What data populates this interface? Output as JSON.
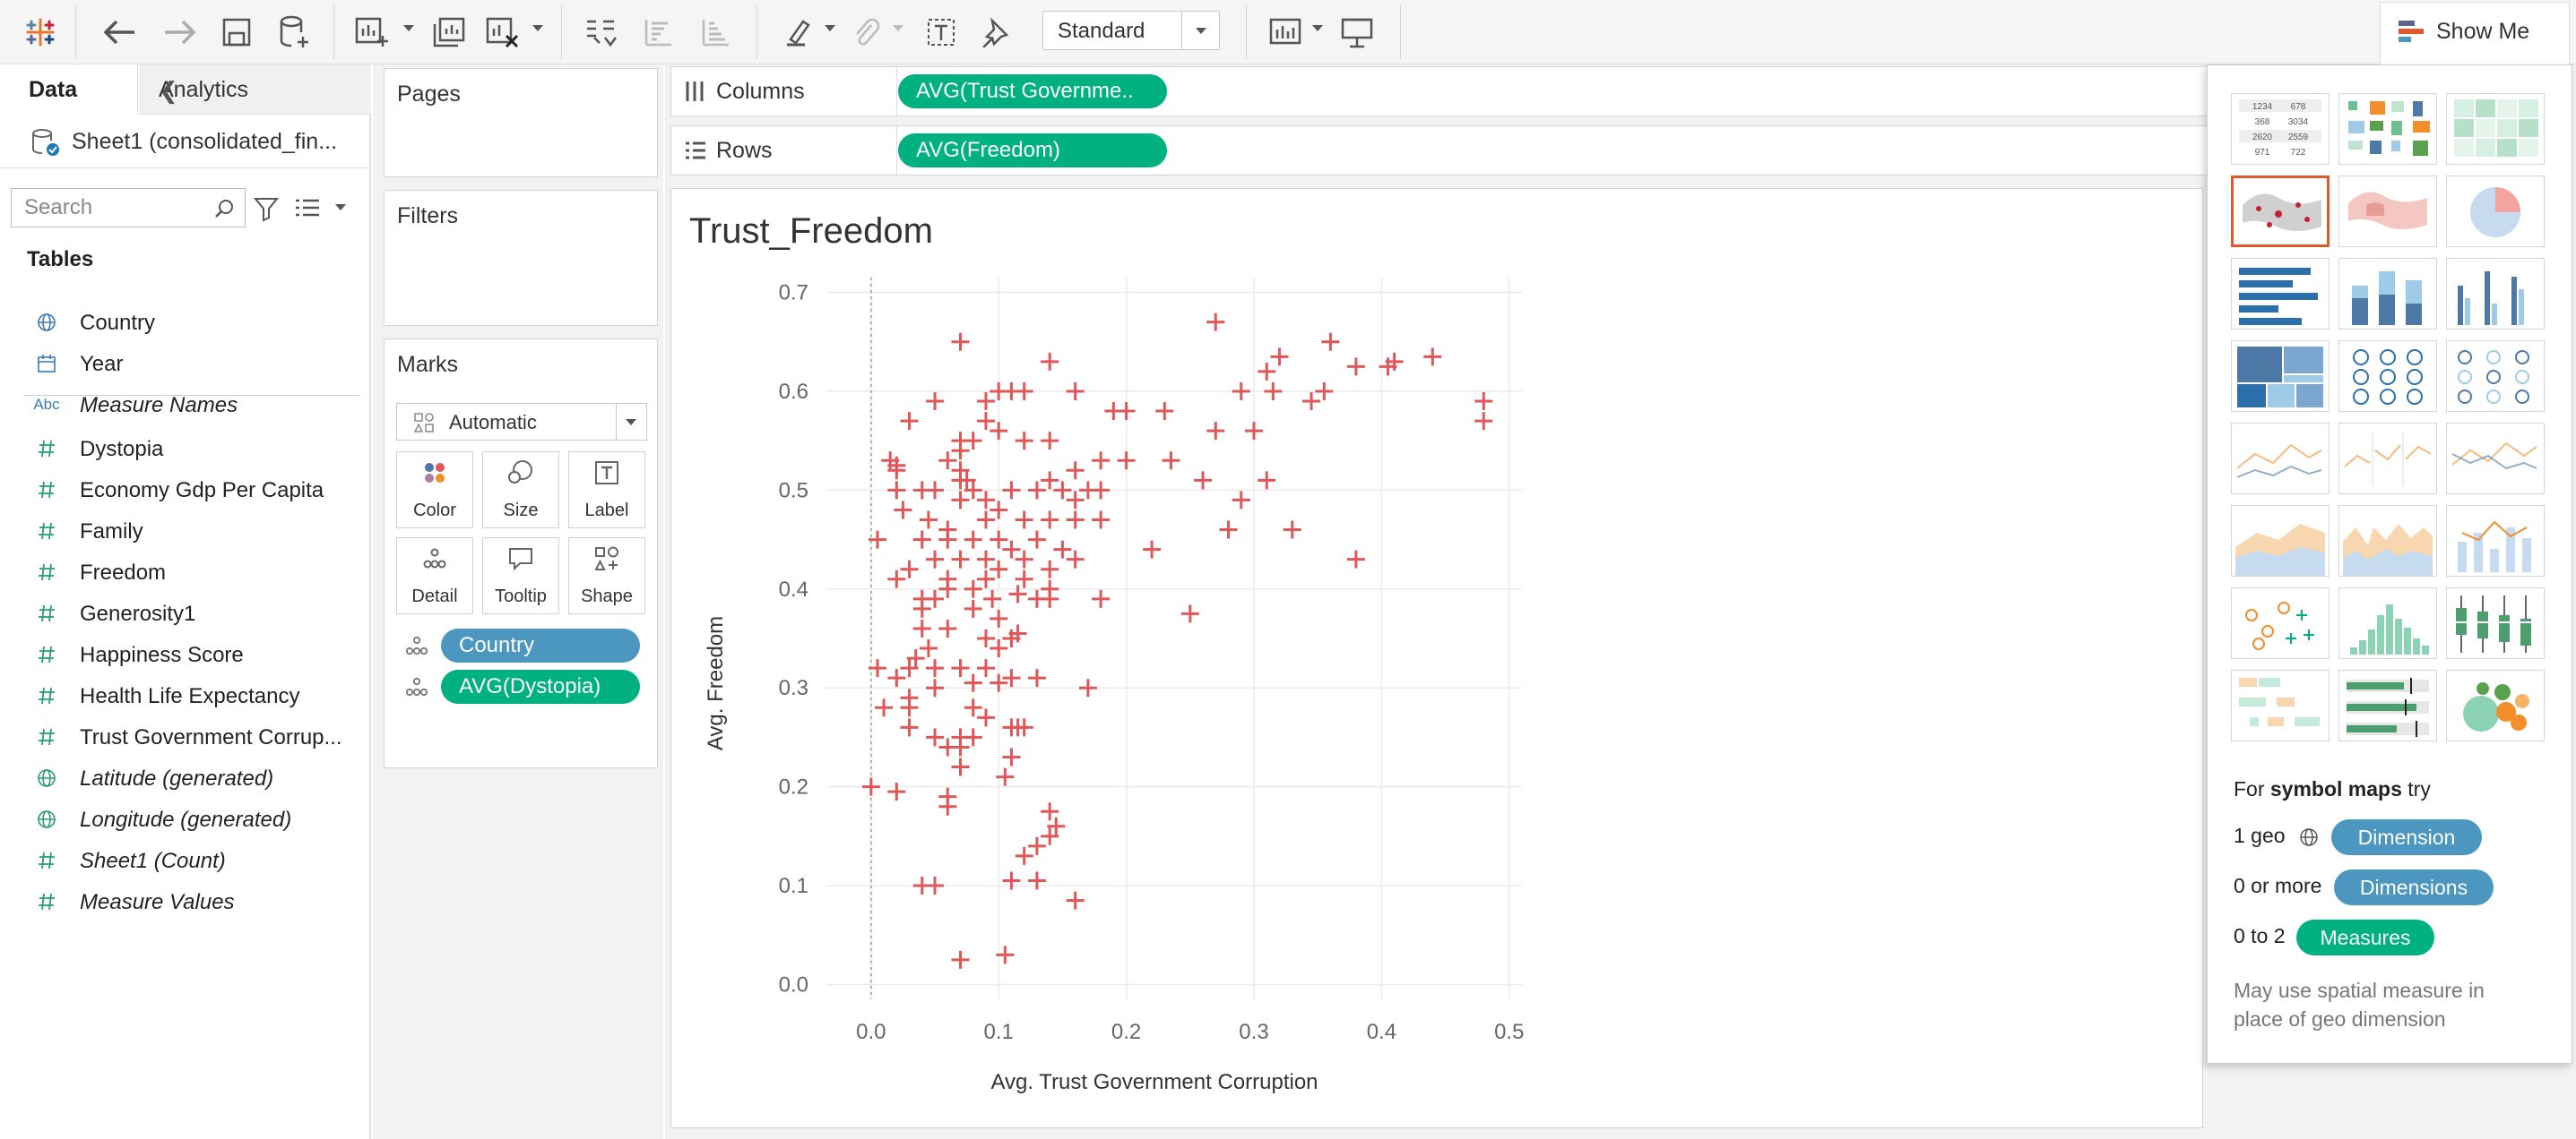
{
  "toolbar": {
    "view_mode": "Standard",
    "show_me_label": "Show Me",
    "icons": [
      "tableau-logo-icon",
      "undo-icon",
      "redo-icon",
      "save-icon",
      "new-datasource-icon",
      "new-worksheet-icon",
      "duplicate-sheet-icon",
      "clear-sheet-icon",
      "swap-rows-columns-icon",
      "sort-ascending-icon",
      "sort-descending-icon",
      "highlight-icon",
      "group-members-icon",
      "show-mark-labels-icon",
      "pin-axes-icon",
      "show-cards-icon",
      "presentation-mode-icon"
    ]
  },
  "data_pane": {
    "tab_data": "Data",
    "tab_analytics": "Analytics",
    "datasource": "Sheet1 (consolidated_fin...",
    "search_placeholder": "Search",
    "tables_heading": "Tables",
    "fields": [
      {
        "name": "Country",
        "icon": "globe-icon",
        "italic": false
      },
      {
        "name": "Year",
        "icon": "calendar-icon",
        "italic": false
      },
      {
        "name": "Measure Names",
        "icon": "abc-icon",
        "italic": true
      },
      {
        "name": "Dystopia",
        "icon": "hash-icon",
        "italic": false
      },
      {
        "name": "Economy Gdp Per Capita",
        "icon": "hash-icon",
        "italic": false
      },
      {
        "name": "Family",
        "icon": "hash-icon",
        "italic": false
      },
      {
        "name": "Freedom",
        "icon": "hash-icon",
        "italic": false
      },
      {
        "name": "Generosity1",
        "icon": "hash-icon",
        "italic": false
      },
      {
        "name": "Happiness Score",
        "icon": "hash-icon",
        "italic": false
      },
      {
        "name": "Health Life Expectancy",
        "icon": "hash-icon",
        "italic": false
      },
      {
        "name": "Trust Government Corrup...",
        "icon": "hash-icon",
        "italic": false
      },
      {
        "name": "Latitude (generated)",
        "icon": "globe-icon",
        "italic": true
      },
      {
        "name": "Longitude (generated)",
        "icon": "globe-icon",
        "italic": true
      },
      {
        "name": "Sheet1 (Count)",
        "icon": "hash-icon",
        "italic": true
      },
      {
        "name": "Measure Values",
        "icon": "hash-icon",
        "italic": true
      }
    ]
  },
  "cards": {
    "pages": "Pages",
    "filters": "Filters",
    "marks": "Marks",
    "mark_type": "Automatic",
    "mark_buttons": [
      "Color",
      "Size",
      "Label",
      "Detail",
      "Tooltip",
      "Shape"
    ],
    "mark_pills": [
      "Country",
      "AVG(Dystopia)"
    ]
  },
  "shelves": {
    "columns_label": "Columns",
    "columns_pill": "AVG(Trust Governme..",
    "rows_label": "Rows",
    "rows_pill": "AVG(Freedom)"
  },
  "sheet_title": "Trust_Freedom",
  "chart_data": {
    "type": "scatter",
    "title": "Trust_Freedom",
    "xlabel": "Avg. Trust Government Corruption",
    "ylabel": "Avg. Freedom",
    "xlim": [
      -0.035,
      0.51
    ],
    "ylim": [
      -0.015,
      0.715
    ],
    "xticks": [
      "0.0",
      "0.1",
      "0.2",
      "0.3",
      "0.4",
      "0.5"
    ],
    "yticks": [
      "0.0",
      "0.1",
      "0.2",
      "0.3",
      "0.4",
      "0.5",
      "0.6",
      "0.7"
    ],
    "grid": true,
    "marker": "plus",
    "color": "#e15759",
    "points": [
      [
        0.27,
        0.67
      ],
      [
        0.36,
        0.65
      ],
      [
        0.44,
        0.635
      ],
      [
        0.32,
        0.635
      ],
      [
        0.41,
        0.63
      ],
      [
        0.405,
        0.625
      ],
      [
        0.38,
        0.625
      ],
      [
        0.31,
        0.62
      ],
      [
        0.315,
        0.6
      ],
      [
        0.29,
        0.6
      ],
      [
        0.355,
        0.6
      ],
      [
        0.345,
        0.59
      ],
      [
        0.23,
        0.58
      ],
      [
        0.2,
        0.58
      ],
      [
        0.19,
        0.58
      ],
      [
        0.48,
        0.59
      ],
      [
        0.48,
        0.57
      ],
      [
        0.3,
        0.56
      ],
      [
        0.27,
        0.56
      ],
      [
        0.07,
        0.65
      ],
      [
        0.14,
        0.63
      ],
      [
        0.12,
        0.6
      ],
      [
        0.16,
        0.6
      ],
      [
        0.11,
        0.6
      ],
      [
        0.1,
        0.6
      ],
      [
        0.09,
        0.59
      ],
      [
        0.05,
        0.59
      ],
      [
        0.03,
        0.57
      ],
      [
        0.09,
        0.57
      ],
      [
        0.08,
        0.55
      ],
      [
        0.07,
        0.55
      ],
      [
        0.07,
        0.54
      ],
      [
        0.12,
        0.55
      ],
      [
        0.14,
        0.55
      ],
      [
        0.1,
        0.56
      ],
      [
        0.06,
        0.53
      ],
      [
        0.07,
        0.52
      ],
      [
        0.07,
        0.51
      ],
      [
        0.015,
        0.53
      ],
      [
        0.02,
        0.525
      ],
      [
        0.02,
        0.52
      ],
      [
        0.075,
        0.51
      ],
      [
        0.18,
        0.53
      ],
      [
        0.2,
        0.53
      ],
      [
        0.235,
        0.53
      ],
      [
        0.16,
        0.52
      ],
      [
        0.14,
        0.51
      ],
      [
        0.17,
        0.5
      ],
      [
        0.18,
        0.5
      ],
      [
        0.16,
        0.49
      ],
      [
        0.15,
        0.5
      ],
      [
        0.13,
        0.5
      ],
      [
        0.11,
        0.5
      ],
      [
        0.08,
        0.5
      ],
      [
        0.09,
        0.49
      ],
      [
        0.07,
        0.49
      ],
      [
        0.05,
        0.5
      ],
      [
        0.04,
        0.5
      ],
      [
        0.02,
        0.5
      ],
      [
        0.025,
        0.48
      ],
      [
        0.045,
        0.47
      ],
      [
        0.06,
        0.46
      ],
      [
        0.09,
        0.47
      ],
      [
        0.1,
        0.48
      ],
      [
        0.12,
        0.47
      ],
      [
        0.14,
        0.47
      ],
      [
        0.16,
        0.47
      ],
      [
        0.18,
        0.47
      ],
      [
        0.26,
        0.51
      ],
      [
        0.31,
        0.51
      ],
      [
        0.29,
        0.49
      ],
      [
        0.28,
        0.46
      ],
      [
        0.33,
        0.46
      ],
      [
        0.005,
        0.45
      ],
      [
        0.04,
        0.45
      ],
      [
        0.06,
        0.45
      ],
      [
        0.08,
        0.45
      ],
      [
        0.1,
        0.45
      ],
      [
        0.11,
        0.44
      ],
      [
        0.13,
        0.45
      ],
      [
        0.15,
        0.44
      ],
      [
        0.12,
        0.43
      ],
      [
        0.09,
        0.43
      ],
      [
        0.07,
        0.43
      ],
      [
        0.05,
        0.43
      ],
      [
        0.03,
        0.42
      ],
      [
        0.1,
        0.42
      ],
      [
        0.14,
        0.42
      ],
      [
        0.16,
        0.43
      ],
      [
        0.22,
        0.44
      ],
      [
        0.38,
        0.43
      ],
      [
        0.02,
        0.41
      ],
      [
        0.06,
        0.41
      ],
      [
        0.09,
        0.41
      ],
      [
        0.12,
        0.41
      ],
      [
        0.14,
        0.4
      ],
      [
        0.115,
        0.395
      ],
      [
        0.08,
        0.4
      ],
      [
        0.06,
        0.4
      ],
      [
        0.04,
        0.39
      ],
      [
        0.05,
        0.39
      ],
      [
        0.04,
        0.38
      ],
      [
        0.13,
        0.39
      ],
      [
        0.18,
        0.39
      ],
      [
        0.095,
        0.39
      ],
      [
        0.25,
        0.375
      ],
      [
        0.14,
        0.39
      ],
      [
        0.08,
        0.38
      ],
      [
        0.1,
        0.37
      ],
      [
        0.04,
        0.36
      ],
      [
        0.06,
        0.36
      ],
      [
        0.09,
        0.35
      ],
      [
        0.11,
        0.35
      ],
      [
        0.115,
        0.355
      ],
      [
        0.1,
        0.34
      ],
      [
        0.045,
        0.34
      ],
      [
        0.035,
        0.33
      ],
      [
        0.03,
        0.32
      ],
      [
        0.02,
        0.31
      ],
      [
        0.005,
        0.32
      ],
      [
        0.05,
        0.32
      ],
      [
        0.07,
        0.32
      ],
      [
        0.09,
        0.32
      ],
      [
        0.11,
        0.31
      ],
      [
        0.13,
        0.31
      ],
      [
        0.1,
        0.305
      ],
      [
        0.08,
        0.305
      ],
      [
        0.05,
        0.3
      ],
      [
        0.03,
        0.29
      ],
      [
        0.17,
        0.3
      ],
      [
        0.01,
        0.28
      ],
      [
        0.03,
        0.28
      ],
      [
        0.08,
        0.28
      ],
      [
        0.09,
        0.27
      ],
      [
        0.11,
        0.26
      ],
      [
        0.12,
        0.26
      ],
      [
        0.115,
        0.26
      ],
      [
        0.03,
        0.26
      ],
      [
        0.05,
        0.25
      ],
      [
        0.07,
        0.25
      ],
      [
        0.08,
        0.25
      ],
      [
        0.06,
        0.24
      ],
      [
        0.07,
        0.24
      ],
      [
        0.11,
        0.23
      ],
      [
        0.07,
        0.22
      ],
      [
        0.105,
        0.21
      ],
      [
        0.0,
        0.2
      ],
      [
        0.02,
        0.195
      ],
      [
        0.06,
        0.19
      ],
      [
        0.06,
        0.18
      ],
      [
        0.14,
        0.175
      ],
      [
        0.145,
        0.16
      ],
      [
        0.14,
        0.15
      ],
      [
        0.13,
        0.14
      ],
      [
        0.12,
        0.13
      ],
      [
        0.04,
        0.1
      ],
      [
        0.05,
        0.1
      ],
      [
        0.11,
        0.105
      ],
      [
        0.13,
        0.105
      ],
      [
        0.16,
        0.085
      ],
      [
        0.07,
        0.025
      ],
      [
        0.105,
        0.03
      ]
    ]
  },
  "show_me": {
    "hint_prefix": "For ",
    "hint_bold": "symbol maps",
    "hint_suffix": " try",
    "rows": [
      {
        "lead": "1 geo",
        "pill": "Dimension"
      },
      {
        "lead": "0 or more",
        "pill": "Dimensions"
      },
      {
        "lead": "0 to 2",
        "pill": "Measures"
      }
    ],
    "note": "May use spatial measure in place of geo dimension",
    "thumbs": [
      "text-table",
      "heat-map",
      "highlight-table",
      "symbol-map",
      "filled-map",
      "pie-chart",
      "horizontal-bars",
      "stacked-bars",
      "side-by-side-bars",
      "treemap",
      "circle-views",
      "side-by-side-circles",
      "lines-continuous",
      "lines-discrete",
      "dual-lines",
      "area-continuous",
      "area-discrete",
      "dual-combination",
      "scatter-plot",
      "histogram",
      "box-and-whisker",
      "gantt-chart",
      "bullet-graph",
      "packed-bubbles"
    ],
    "thumb_table_values": [
      [
        "1234",
        "678"
      ],
      [
        "368",
        "3034"
      ],
      [
        "2620",
        "2559"
      ],
      [
        "971",
        "722"
      ]
    ],
    "selected_thumb": "symbol-map"
  },
  "colors": {
    "accent_green": "#00b180",
    "accent_blue": "#4b97bf",
    "mark_red": "#e15759",
    "selection_orange": "#e2582e"
  }
}
